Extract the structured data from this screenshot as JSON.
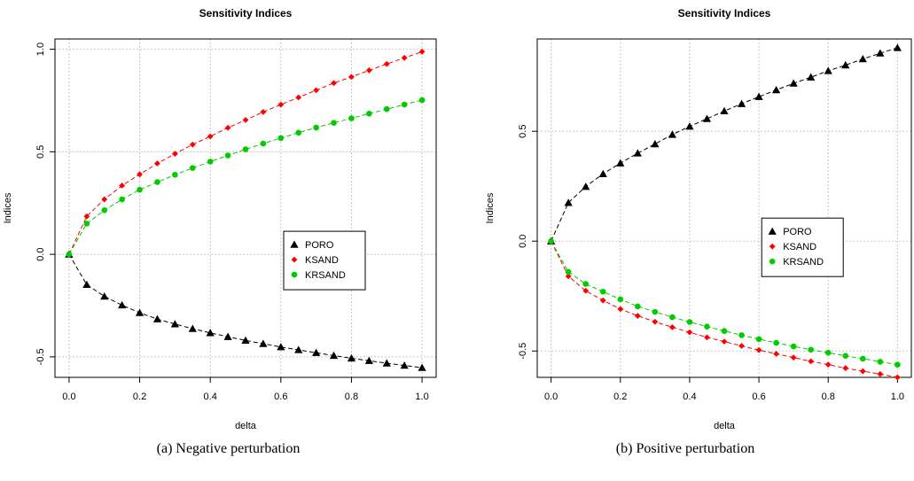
{
  "chart_data": [
    {
      "type": "line",
      "title": "Sensitivity Indices",
      "xlabel": "delta",
      "ylabel": "Indices",
      "caption": "(a)  Negative perturbation",
      "xlim": [
        0,
        1
      ],
      "ylim": [
        -0.6,
        1.05
      ],
      "xticks": [
        "0.0",
        "0.2",
        "0.4",
        "0.6",
        "0.8",
        "1.0"
      ],
      "yticks": [
        "-0.5",
        "0.0",
        "0.5",
        "1.0"
      ],
      "grid": true,
      "legend_position": "center-right",
      "x": [
        0,
        0.05,
        0.1,
        0.15,
        0.2,
        0.25,
        0.3,
        0.35,
        0.4,
        0.45,
        0.5,
        0.55,
        0.6,
        0.65,
        0.7,
        0.75,
        0.8,
        0.85,
        0.9,
        0.95,
        1.0
      ],
      "series": [
        {
          "name": "PORO",
          "color": "#000000",
          "marker": "triangle",
          "values": [
            0,
            -0.148,
            -0.205,
            -0.248,
            -0.285,
            -0.316,
            -0.34,
            -0.363,
            -0.383,
            -0.402,
            -0.42,
            -0.436,
            -0.452,
            -0.466,
            -0.48,
            -0.494,
            -0.507,
            -0.519,
            -0.531,
            -0.542,
            -0.553
          ]
        },
        {
          "name": "KSAND",
          "color": "#ff0000",
          "marker": "diamond",
          "values": [
            0,
            0.185,
            0.268,
            0.335,
            0.39,
            0.443,
            0.49,
            0.535,
            0.575,
            0.617,
            0.655,
            0.694,
            0.73,
            0.765,
            0.8,
            0.835,
            0.865,
            0.897,
            0.928,
            0.958,
            0.988
          ]
        },
        {
          "name": "KRSAND",
          "color": "#00cc00",
          "marker": "circle",
          "values": [
            0,
            0.15,
            0.215,
            0.268,
            0.315,
            0.352,
            0.388,
            0.421,
            0.452,
            0.482,
            0.512,
            0.54,
            0.567,
            0.593,
            0.618,
            0.641,
            0.663,
            0.686,
            0.708,
            0.73,
            0.752
          ]
        }
      ]
    },
    {
      "type": "line",
      "title": "Sensitivity Indices",
      "xlabel": "delta",
      "ylabel": "Indices",
      "caption": "(b)  Positive perturbation",
      "xlim": [
        0,
        1
      ],
      "ylim": [
        -0.62,
        0.92
      ],
      "xticks": [
        "0.0",
        "0.2",
        "0.4",
        "0.6",
        "0.8",
        "1.0"
      ],
      "yticks": [
        "-0.5",
        "0.0",
        "0.5"
      ],
      "grid": true,
      "legend_position": "center-right",
      "x": [
        0,
        0.05,
        0.1,
        0.15,
        0.2,
        0.25,
        0.3,
        0.35,
        0.4,
        0.45,
        0.5,
        0.55,
        0.6,
        0.65,
        0.7,
        0.75,
        0.8,
        0.85,
        0.9,
        0.95,
        1.0
      ],
      "series": [
        {
          "name": "PORO",
          "color": "#000000",
          "marker": "triangle",
          "values": [
            0,
            0.175,
            0.248,
            0.306,
            0.355,
            0.4,
            0.442,
            0.485,
            0.522,
            0.557,
            0.592,
            0.625,
            0.657,
            0.688,
            0.718,
            0.746,
            0.775,
            0.801,
            0.829,
            0.855,
            0.88
          ]
        },
        {
          "name": "KSAND",
          "color": "#ff0000",
          "marker": "diamond",
          "values": [
            0,
            -0.16,
            -0.226,
            -0.27,
            -0.309,
            -0.34,
            -0.367,
            -0.392,
            -0.415,
            -0.438,
            -0.457,
            -0.477,
            -0.496,
            -0.513,
            -0.53,
            -0.547,
            -0.562,
            -0.578,
            -0.592,
            -0.605,
            -0.62
          ]
        },
        {
          "name": "KRSAND",
          "color": "#00cc00",
          "marker": "circle",
          "values": [
            0,
            -0.14,
            -0.195,
            -0.23,
            -0.265,
            -0.297,
            -0.322,
            -0.346,
            -0.368,
            -0.389,
            -0.409,
            -0.428,
            -0.446,
            -0.463,
            -0.479,
            -0.494,
            -0.508,
            -0.522,
            -0.535,
            -0.549,
            -0.562
          ]
        }
      ]
    }
  ]
}
